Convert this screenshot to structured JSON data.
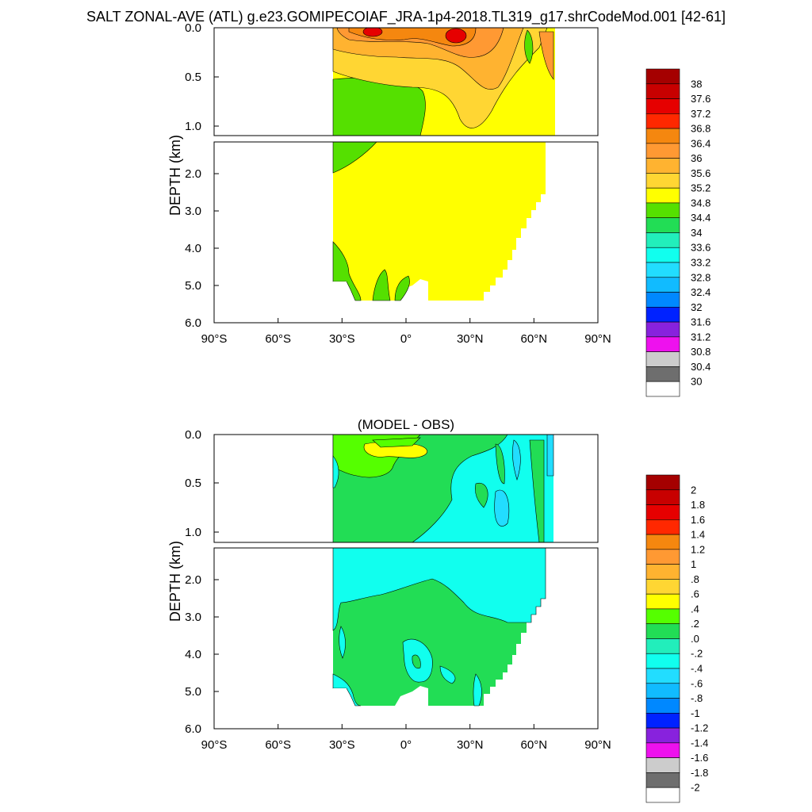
{
  "page_title": "SALT ZONAL-AVE (ATL) g.e23.GOMIPECOIAF_JRA-1p4-2018.TL319_g17.shrCodeMod.001 [42-61]",
  "chart_data": [
    {
      "type": "heatmap",
      "title": "",
      "ylabel": "DEPTH (km)",
      "x_ticks": [
        "90°S",
        "60°S",
        "30°S",
        "0°",
        "30°N",
        "60°N",
        "90°N"
      ],
      "upper_y_ticks": [
        "0.0",
        "0.5",
        "1.0"
      ],
      "lower_y_ticks": [
        "2.0",
        "3.0",
        "4.0",
        "5.0",
        "6.0"
      ],
      "xlim": [
        -90,
        90
      ],
      "upper_ylim_km": [
        0,
        1.15
      ],
      "lower_ylim_km": [
        1.15,
        6.0
      ],
      "data_extent_lat": [
        -34,
        65
      ],
      "colorbar_labels": [
        "38",
        "37.6",
        "37.2",
        "36.8",
        "36.4",
        "36",
        "35.6",
        "35.2",
        "34.8",
        "34.4",
        "34",
        "33.6",
        "33.2",
        "32.8",
        "32.4",
        "32",
        "31.6",
        "31.2",
        "30.8",
        "30.4",
        "30"
      ],
      "colorbar_colors": [
        "#a50000",
        "#c80000",
        "#e60000",
        "#ff2800",
        "#f5870f",
        "#ff9933",
        "#ffb330",
        "#ffd633",
        "#ffff00",
        "#55e000",
        "#22dd55",
        "#22eebb",
        "#11ffee",
        "#22ddff",
        "#11bbff",
        "#0088ff",
        "#0022ff",
        "#8822dd",
        "#ee11ee",
        "#cccccc",
        "#6e6e6e",
        "#ffffff"
      ]
    },
    {
      "type": "heatmap",
      "title": "(MODEL - OBS)",
      "ylabel": "DEPTH (km)",
      "x_ticks": [
        "90°S",
        "60°S",
        "30°S",
        "0°",
        "30°N",
        "60°N",
        "90°N"
      ],
      "upper_y_ticks": [
        "0.0",
        "0.5",
        "1.0"
      ],
      "lower_y_ticks": [
        "2.0",
        "3.0",
        "4.0",
        "5.0",
        "6.0"
      ],
      "xlim": [
        -90,
        90
      ],
      "upper_ylim_km": [
        0,
        1.15
      ],
      "lower_ylim_km": [
        1.15,
        6.0
      ],
      "data_extent_lat": [
        -34,
        65
      ],
      "colorbar_labels": [
        "2",
        "1.8",
        "1.6",
        "1.4",
        "1.2",
        "1",
        ".8",
        ".6",
        ".4",
        ".2",
        ".0",
        "-.2",
        "-.4",
        "-.6",
        "-.8",
        "-1",
        "-1.2",
        "-1.4",
        "-1.6",
        "-1.8",
        "-2"
      ],
      "colorbar_colors": [
        "#a50000",
        "#c80000",
        "#e60000",
        "#ff2800",
        "#f5870f",
        "#ff9933",
        "#ffb330",
        "#ffd633",
        "#ffff00",
        "#55ff00",
        "#22dd55",
        "#22eebb",
        "#11ffee",
        "#22ddff",
        "#11bbff",
        "#0088ff",
        "#0022ff",
        "#8822dd",
        "#ee11ee",
        "#cccccc",
        "#6e6e6e",
        "#ffffff"
      ]
    }
  ]
}
